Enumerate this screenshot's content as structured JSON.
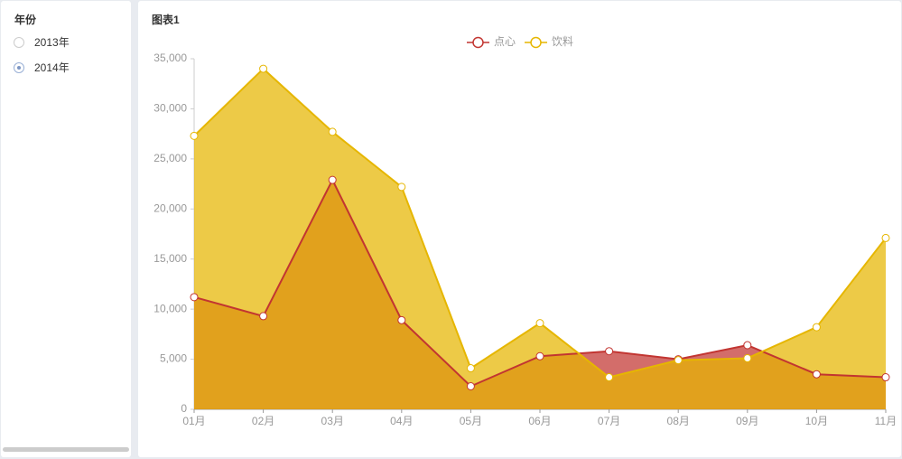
{
  "sidebar": {
    "title": "年份",
    "options": [
      "2013年",
      "2014年"
    ],
    "selected": 1
  },
  "chart_data": {
    "type": "area",
    "title": "图表1",
    "categories": [
      "01月",
      "02月",
      "03月",
      "04月",
      "05月",
      "06月",
      "07月",
      "08月",
      "09月",
      "10月",
      "11月"
    ],
    "series": [
      {
        "name": "点心",
        "color": "#c23531",
        "values": [
          11200,
          9300,
          22900,
          8900,
          2300,
          5300,
          5800,
          5000,
          6400,
          3500,
          3200
        ]
      },
      {
        "name": "饮料",
        "color": "#e6b600",
        "values": [
          27300,
          34000,
          27700,
          22200,
          4100,
          8600,
          3200,
          4900,
          5100,
          8200,
          17100
        ]
      }
    ],
    "ylim": [
      0,
      35000
    ],
    "yticks": [
      0,
      {
        "value": 5000,
        "label": "5,000"
      },
      {
        "value": 10000,
        "label": "10,000"
      },
      {
        "value": 15000,
        "label": "15,000"
      },
      {
        "value": 20000,
        "label": "20,000"
      },
      {
        "value": 25000,
        "label": "25,000"
      },
      {
        "value": 30000,
        "label": "30,000"
      },
      {
        "value": 35000,
        "label": "35,000"
      }
    ],
    "grid": false,
    "legend": "top"
  }
}
